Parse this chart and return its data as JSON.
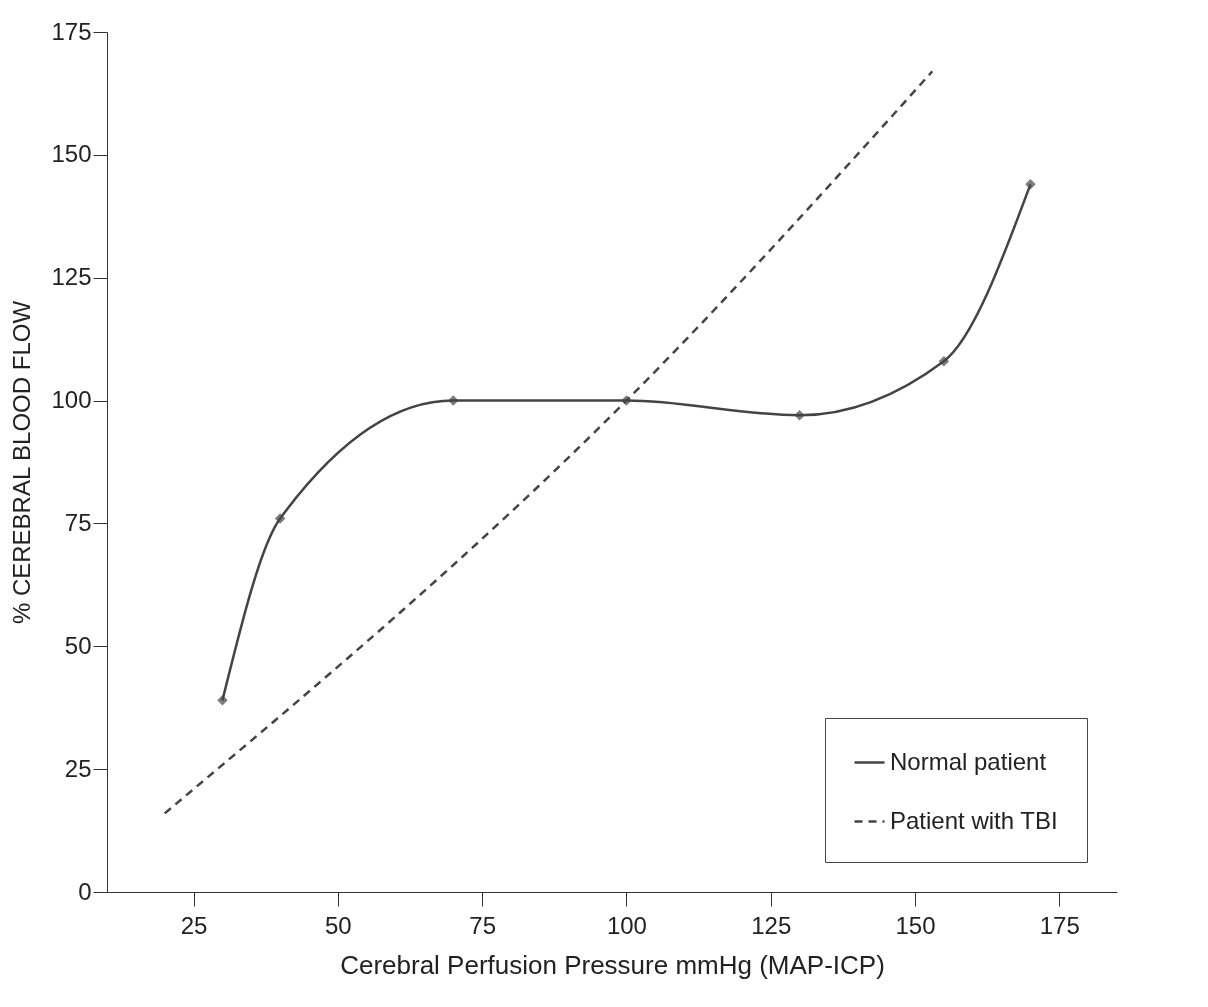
{
  "chart_data": {
    "type": "line",
    "xlabel": "Cerebral Perfusion Pressure mmHg (MAP-ICP)",
    "ylabel": "% CEREBRAL BLOOD FLOW",
    "xlim": [
      10,
      185
    ],
    "xticks": [
      25,
      50,
      75,
      100,
      125,
      150,
      175
    ],
    "ylim": [
      0,
      175
    ],
    "yticks": [
      0,
      25,
      50,
      75,
      100,
      125,
      150,
      175
    ],
    "grid": false,
    "legend": "bottom right",
    "series": [
      {
        "name": "Normal patient",
        "color": "#444444",
        "line_style": "solid",
        "marker": "diamond",
        "x": [
          30,
          40,
          70,
          100,
          130,
          155,
          170
        ],
        "values": [
          39,
          76,
          100,
          100,
          97,
          108,
          144
        ]
      },
      {
        "name": "Patient with TBI",
        "color": "#444444",
        "line_style": "dashed",
        "marker": "none",
        "x": [
          20,
          100,
          153
        ],
        "values": [
          16,
          100,
          167
        ]
      }
    ]
  }
}
